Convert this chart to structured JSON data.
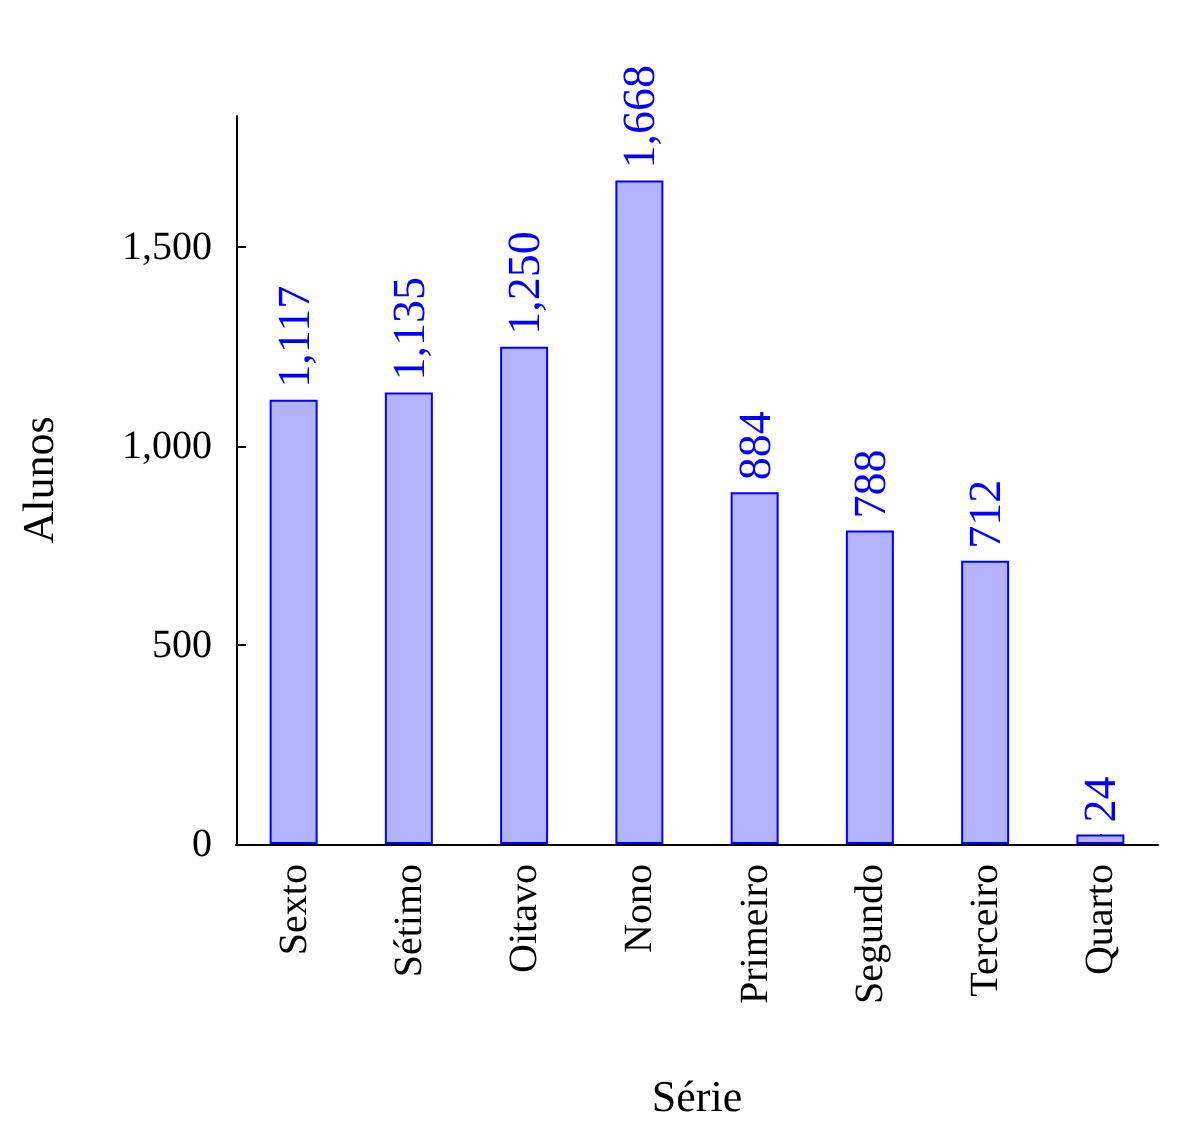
{
  "chart_data": {
    "type": "bar",
    "xlabel": "Série",
    "ylabel": "Alunos",
    "categories": [
      "Sexto",
      "Sétimo",
      "Oitavo",
      "Nono",
      "Primeiro",
      "Segundo",
      "Terceiro",
      "Quarto"
    ],
    "values": [
      1117,
      1135,
      1250,
      1668,
      884,
      788,
      712,
      24
    ],
    "value_labels": [
      "1,117",
      "1,135",
      "1,250",
      "1,668",
      "884",
      "788",
      "712",
      "24"
    ],
    "color": "#b3b3ff",
    "ylim": [
      0,
      1830
    ],
    "yticks": [
      0,
      {
        "value": 500,
        "label": "500"
      },
      {
        "value": 1000,
        "label": "1,000"
      },
      {
        "value": 1500,
        "label": "1,500"
      }
    ],
    "grid": false
  }
}
